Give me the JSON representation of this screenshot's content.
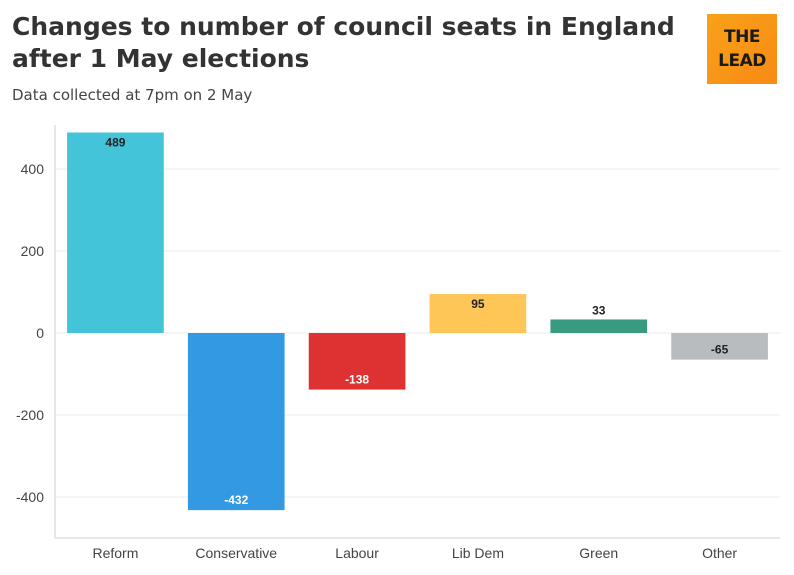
{
  "header": {
    "title": "Changes to number of council seats in England after 1 May elections",
    "subtitle": "Data collected at 7pm on 2 May"
  },
  "logo": {
    "line1": "THE",
    "line2": "LEAD"
  },
  "chart_data": {
    "type": "bar",
    "title": "Changes to number of council seats in England after 1 May elections",
    "subtitle": "Data collected at 7pm on 2 May",
    "xlabel": "",
    "ylabel": "",
    "categories": [
      "Reform",
      "Conservative",
      "Labour",
      "Lib Dem",
      "Green",
      "Other"
    ],
    "values": [
      489,
      -432,
      -138,
      95,
      33,
      -65
    ],
    "data_labels": [
      "489",
      "-432",
      "-138",
      "95",
      "33",
      "-65"
    ],
    "colors": [
      "#44c4d8",
      "#3399e2",
      "#de3131",
      "#fec657",
      "#389a81",
      "#b9bcbf"
    ],
    "label_colors": [
      "#222222",
      "#ffffff",
      "#ffffff",
      "#222222",
      "#222222",
      "#222222"
    ],
    "ylim": [
      -500,
      500
    ],
    "yticks": [
      -400,
      -200,
      0,
      200,
      400
    ],
    "ytick_labels": [
      "-400",
      "-200",
      "0",
      "200",
      "400"
    ],
    "grid": true,
    "legend": "none"
  }
}
